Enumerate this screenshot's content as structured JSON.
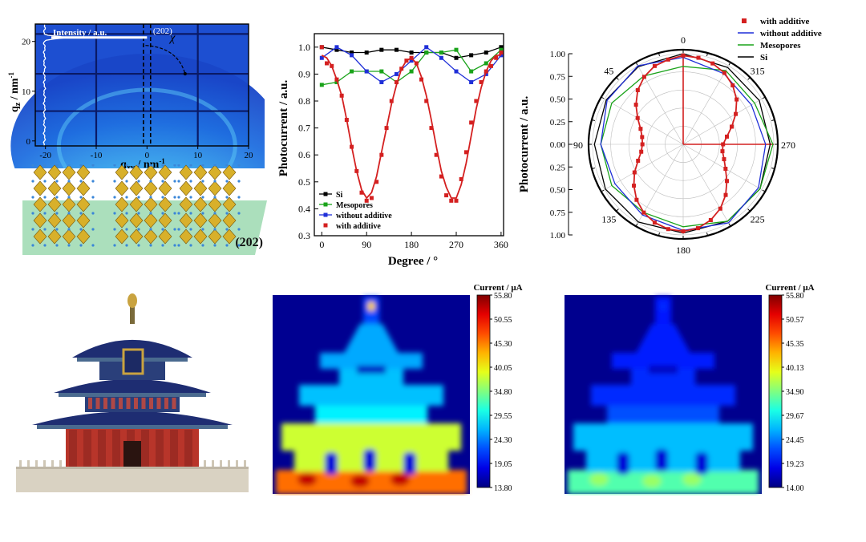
{
  "chart_data": [
    {
      "panel": "giwaxs",
      "type": "heatmap",
      "xlabel": "q",
      "xlabel_sub": "xy",
      "xlabel_unit": " / nm",
      "xlabel_sup": "-1",
      "ylabel": "q",
      "ylabel_sub": "z",
      "ylabel_unit": " / nm",
      "ylabel_sup": "-1",
      "xticks": [
        "-20",
        "-10",
        "0",
        "10",
        "20"
      ],
      "yticks": [
        "0",
        "10",
        "20"
      ],
      "xlim": [
        -22,
        20
      ],
      "ylim": [
        -1,
        23.5
      ],
      "annotations": {
        "intensity": "Intensity / a.u.",
        "peak": "(202)",
        "chi": "χ"
      },
      "peak_q": 20.8,
      "colors": {
        "bg": "#1d4fd1",
        "ring": "#5cc8f5",
        "grid": "#0a1a66"
      }
    },
    {
      "panel": "crystal",
      "type": "illustration",
      "label": "(202)",
      "colors": {
        "plane": "#8fd4a5",
        "octahedron": "#d8b02a",
        "dots": "#3a86d8"
      }
    },
    {
      "panel": "linear",
      "type": "line",
      "xlabel": "Degree / °",
      "ylabel": "Photocurrent / a.u.",
      "xticks": [
        "0",
        "90",
        "180",
        "270",
        "360"
      ],
      "yticks": [
        "0.3",
        "0.4",
        "0.5",
        "0.6",
        "0.7",
        "0.8",
        "0.9",
        "1.0"
      ],
      "xlim": [
        -15,
        365
      ],
      "ylim": [
        0.3,
        1.05
      ],
      "series": [
        {
          "name": "Si",
          "color": "#000000",
          "marker": "square",
          "line": true,
          "x": [
            0,
            30,
            60,
            90,
            120,
            150,
            180,
            210,
            240,
            270,
            300,
            330,
            360
          ],
          "y": [
            1.0,
            0.99,
            0.98,
            0.98,
            0.99,
            0.99,
            0.98,
            0.98,
            0.98,
            0.96,
            0.97,
            0.98,
            1.0
          ]
        },
        {
          "name": "Mesopores",
          "color": "#1aa31a",
          "marker": "square",
          "line": true,
          "x": [
            0,
            30,
            60,
            90,
            120,
            150,
            180,
            210,
            240,
            270,
            300,
            330,
            360
          ],
          "y": [
            0.86,
            0.87,
            0.91,
            0.91,
            0.91,
            0.87,
            0.91,
            0.98,
            0.98,
            0.99,
            0.91,
            0.94,
            0.99
          ]
        },
        {
          "name": "without additive",
          "color": "#1f2fd8",
          "marker": "square",
          "line": true,
          "x": [
            0,
            30,
            60,
            90,
            120,
            150,
            180,
            210,
            240,
            270,
            300,
            330,
            360
          ],
          "y": [
            0.96,
            1.0,
            0.97,
            0.91,
            0.87,
            0.9,
            0.95,
            1.0,
            0.96,
            0.91,
            0.87,
            0.9,
            0.97
          ]
        },
        {
          "name": "with additive",
          "color": "#d42020",
          "marker": "square",
          "line": false,
          "x": [
            0,
            10,
            20,
            30,
            40,
            50,
            60,
            70,
            80,
            90,
            100,
            110,
            120,
            130,
            140,
            150,
            160,
            170,
            180,
            190,
            200,
            210,
            220,
            230,
            240,
            250,
            260,
            270,
            280,
            290,
            300,
            310,
            320,
            330,
            340,
            350,
            360
          ],
          "y": [
            1.0,
            0.94,
            0.93,
            0.88,
            0.82,
            0.73,
            0.63,
            0.54,
            0.46,
            0.43,
            0.44,
            0.5,
            0.6,
            0.7,
            0.8,
            0.87,
            0.92,
            0.95,
            0.96,
            0.94,
            0.88,
            0.8,
            0.7,
            0.6,
            0.52,
            0.45,
            0.43,
            0.43,
            0.51,
            0.61,
            0.72,
            0.8,
            0.87,
            0.91,
            0.93,
            0.96,
            0.98
          ]
        },
        {
          "name": "",
          "color": "#d42020",
          "marker": "none",
          "line": true,
          "fit": true,
          "x": [
            0,
            10,
            20,
            30,
            40,
            50,
            60,
            70,
            80,
            90,
            100,
            110,
            120,
            130,
            140,
            150,
            160,
            170,
            180,
            190,
            200,
            210,
            220,
            230,
            240,
            250,
            260,
            270,
            280,
            290,
            300,
            310,
            320,
            330,
            340,
            350,
            360
          ],
          "y": [
            0.97,
            0.96,
            0.93,
            0.88,
            0.82,
            0.73,
            0.63,
            0.54,
            0.47,
            0.44,
            0.46,
            0.52,
            0.61,
            0.7,
            0.79,
            0.86,
            0.92,
            0.95,
            0.96,
            0.94,
            0.89,
            0.82,
            0.73,
            0.63,
            0.54,
            0.48,
            0.44,
            0.44,
            0.49,
            0.57,
            0.67,
            0.77,
            0.85,
            0.91,
            0.95,
            0.97,
            0.97
          ]
        }
      ],
      "legend": "bottom-left"
    },
    {
      "panel": "polar",
      "type": "line",
      "subtype": "polar",
      "ylabel": "Photocurrent / a.u.",
      "rticks": [
        "0.00",
        "0.25",
        "0.50",
        "0.75",
        "1.00"
      ],
      "angle_labels": [
        "0",
        "45",
        "90",
        "135",
        "180",
        "225",
        "270",
        "315"
      ],
      "series": [
        {
          "name": "with additive",
          "color": "#d42020",
          "marker": "square",
          "angles": [
            0,
            10,
            20,
            30,
            40,
            50,
            60,
            70,
            80,
            90,
            100,
            110,
            120,
            130,
            140,
            150,
            160,
            170,
            180,
            190,
            200,
            210,
            220,
            230,
            240,
            250,
            260,
            270,
            280,
            290,
            300,
            310,
            320,
            330,
            340,
            350
          ],
          "r": [
            0.98,
            0.95,
            0.92,
            0.86,
            0.78,
            0.68,
            0.58,
            0.5,
            0.46,
            0.45,
            0.47,
            0.53,
            0.62,
            0.71,
            0.8,
            0.87,
            0.92,
            0.95,
            0.96,
            0.94,
            0.89,
            0.82,
            0.73,
            0.63,
            0.54,
            0.48,
            0.44,
            0.44,
            0.49,
            0.57,
            0.67,
            0.77,
            0.85,
            0.91,
            0.95,
            0.97
          ]
        },
        {
          "name": "without additive",
          "color": "#1f2fd8",
          "marker": "none",
          "angles": [
            0,
            30,
            60,
            90,
            120,
            150,
            180,
            210,
            240,
            270,
            300,
            330
          ],
          "r": [
            0.96,
            1.0,
            0.97,
            0.91,
            0.87,
            0.9,
            0.95,
            1.0,
            0.96,
            0.91,
            0.87,
            0.9
          ]
        },
        {
          "name": "Mesopores",
          "color": "#1aa31a",
          "marker": "none",
          "angles": [
            0,
            30,
            60,
            90,
            120,
            150,
            180,
            210,
            240,
            270,
            300,
            330
          ],
          "r": [
            0.86,
            0.87,
            0.91,
            0.91,
            0.91,
            0.87,
            0.91,
            0.98,
            0.98,
            0.99,
            0.91,
            0.94
          ]
        },
        {
          "name": "Si",
          "color": "#000000",
          "marker": "none",
          "angles": [
            0,
            30,
            60,
            90,
            120,
            150,
            180,
            210,
            240,
            270,
            300,
            330
          ],
          "r": [
            1.0,
            0.99,
            0.98,
            0.98,
            0.99,
            0.99,
            0.98,
            0.98,
            0.98,
            0.96,
            0.97,
            0.98
          ]
        }
      ],
      "legend": "top-right"
    },
    {
      "panel": "temple",
      "type": "illustration",
      "colors": {
        "roof": "#1e2d72",
        "wall": "#b8352a",
        "base": "#d9d2c2",
        "gold": "#c9a340"
      }
    },
    {
      "panel": "map1",
      "type": "heatmap",
      "colorbar_title": "Current / μA",
      "colorbar_ticks": [
        "55.80",
        "50.55",
        "45.30",
        "40.05",
        "34.80",
        "29.55",
        "24.30",
        "19.05",
        "13.80"
      ],
      "range": [
        13.8,
        55.8
      ],
      "levels": {
        "background": 14.5,
        "top": 22,
        "ball": 42,
        "tier1": 26,
        "tier2": 27,
        "tier3": 29,
        "base_mid": 38,
        "base": 46,
        "hot": 53
      }
    },
    {
      "panel": "map2",
      "type": "heatmap",
      "colorbar_title": "Current / μA",
      "colorbar_ticks": [
        "55.80",
        "50.57",
        "45.35",
        "40.13",
        "34.90",
        "29.67",
        "24.45",
        "19.23",
        "14.00"
      ],
      "range": [
        14.0,
        55.8
      ],
      "levels": {
        "background": 14.6,
        "top": 20,
        "ball": 21,
        "tier1": 20.5,
        "tier2": 21,
        "tier3": 22.5,
        "base_mid": 27,
        "base": 33,
        "hot": 36
      }
    }
  ]
}
